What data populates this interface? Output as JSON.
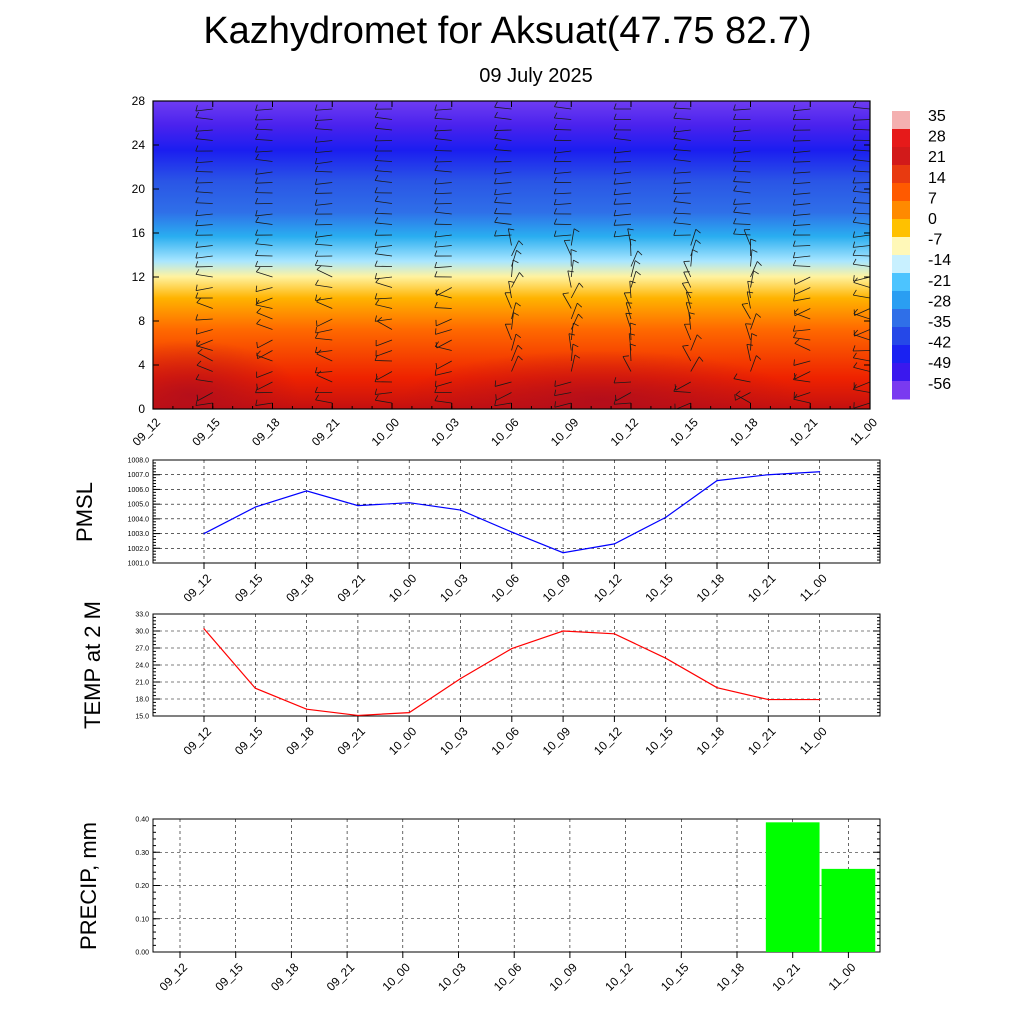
{
  "title": "Kazhydromet for Aksuat(47.75 82.7)",
  "subtitle": "09 July 2025",
  "colors": {
    "pmsl_line": "#0000ff",
    "temp_line": "#ff0000",
    "precip_bar": "#00ff00",
    "grid": "#000000"
  },
  "chart_data": [
    {
      "type": "heatmap",
      "title": "",
      "xlabel": "",
      "ylabel": "",
      "categories": [
        "09_12",
        "09_15",
        "09_18",
        "09_21",
        "10_00",
        "10_03",
        "10_06",
        "10_09",
        "10_12",
        "10_15",
        "10_18",
        "10_21",
        "11_00"
      ],
      "y_ticks": [
        0,
        4,
        8,
        12,
        16,
        20,
        24,
        28
      ],
      "ylim": [
        0,
        28
      ],
      "colorbar": {
        "labels": [
          "35",
          "28",
          "21",
          "14",
          "7",
          "0",
          "-7",
          "-14",
          "-21",
          "-28",
          "-35",
          "-42",
          "-49",
          "-56"
        ],
        "range": [
          -63,
          42
        ]
      },
      "wind_barbs": "shown"
    },
    {
      "type": "line",
      "title": "",
      "ylabel": "PMSL",
      "categories": [
        "09_12",
        "09_15",
        "09_18",
        "09_21",
        "10_00",
        "10_03",
        "10_06",
        "10_09",
        "10_12",
        "10_15",
        "10_18",
        "10_21",
        "11_00"
      ],
      "y_ticks": [
        "1001.0",
        "1002.0",
        "1003.0",
        "1004.0",
        "1005.0",
        "1006.0",
        "1007.0",
        "1008.0"
      ],
      "ylim": [
        1001.0,
        1008.0
      ],
      "grid": true,
      "series": [
        {
          "values": [
            1003.0,
            1004.8,
            1005.9,
            1004.9,
            1005.1,
            1004.6,
            1003.1,
            1001.7,
            1002.3,
            1004.1,
            1006.6,
            1007.0,
            1007.2
          ]
        }
      ]
    },
    {
      "type": "line",
      "title": "",
      "ylabel": "TEMP at 2 M",
      "categories": [
        "09_12",
        "09_15",
        "09_18",
        "09_21",
        "10_00",
        "10_03",
        "10_06",
        "10_09",
        "10_12",
        "10_15",
        "10_18",
        "10_21",
        "11_00"
      ],
      "y_ticks": [
        "15.0",
        "18.0",
        "21.0",
        "24.0",
        "27.0",
        "30.0",
        "33.0"
      ],
      "ylim": [
        15.0,
        33.0
      ],
      "grid": true,
      "series": [
        {
          "values": [
            30.4,
            19.9,
            16.2,
            15.1,
            15.6,
            21.6,
            26.9,
            30.0,
            29.5,
            25.2,
            20.0,
            17.9,
            17.9
          ]
        }
      ]
    },
    {
      "type": "bar",
      "title": "",
      "ylabel": "PRECIP, mm",
      "categories": [
        "09_12",
        "09_15",
        "09_18",
        "09_21",
        "10_00",
        "10_03",
        "10_06",
        "10_09",
        "10_12",
        "10_15",
        "10_18",
        "10_21",
        "11_00"
      ],
      "y_ticks": [
        "0.00",
        "0.10",
        "0.20",
        "0.30",
        "0.40"
      ],
      "ylim": [
        0.0,
        0.4
      ],
      "grid": true,
      "values": [
        0,
        0,
        0,
        0,
        0,
        0,
        0,
        0,
        0,
        0,
        0,
        0.39,
        0.25
      ]
    }
  ]
}
